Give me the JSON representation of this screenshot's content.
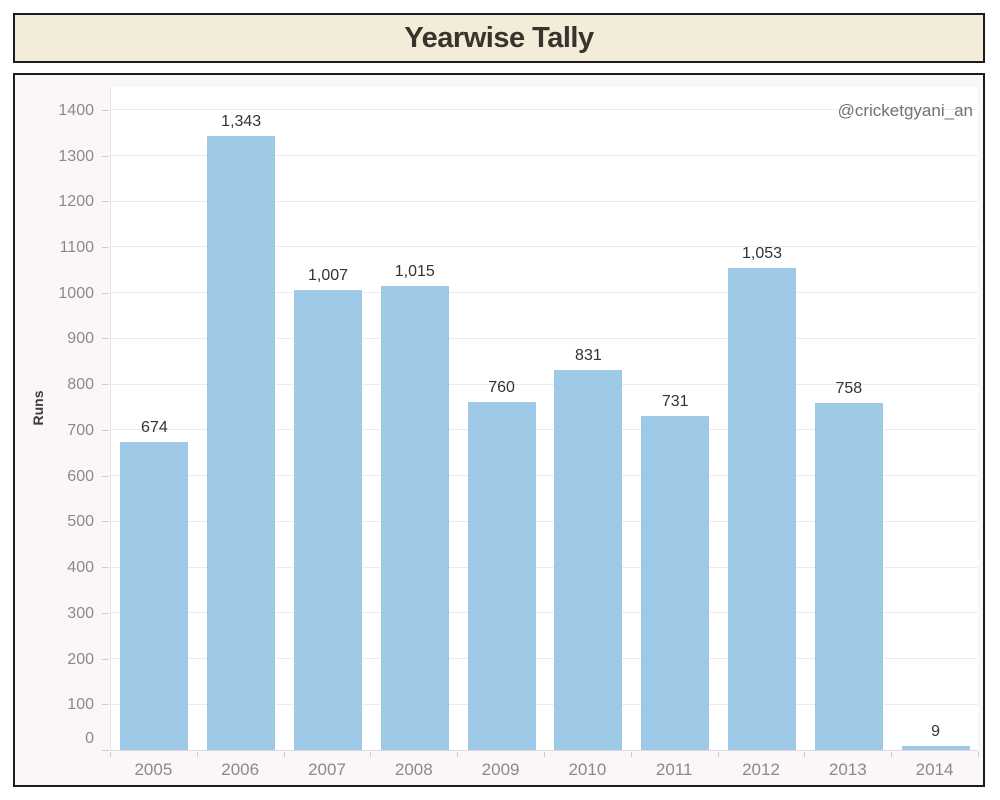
{
  "header": {
    "title": "Yearwise Tally"
  },
  "chart": {
    "watermark": "@cricketgyani_an",
    "ylabel": "Runs"
  },
  "chart_data": {
    "type": "bar",
    "title": "Yearwise Tally",
    "categories": [
      "2005",
      "2006",
      "2007",
      "2008",
      "2009",
      "2010",
      "2011",
      "2012",
      "2013",
      "2014"
    ],
    "values": [
      674,
      1343,
      1007,
      1015,
      760,
      831,
      731,
      1053,
      758,
      9
    ],
    "value_labels": [
      "674",
      "1,343",
      "1,007",
      "1,015",
      "760",
      "831",
      "731",
      "1,053",
      "758",
      "9"
    ],
    "xlabel": "",
    "ylabel": "Runs",
    "ylim": [
      0,
      1452
    ],
    "yticks": [
      0,
      100,
      200,
      300,
      400,
      500,
      600,
      700,
      800,
      900,
      1000,
      1100,
      1200,
      1300,
      1400
    ],
    "grid": "horizontal-only",
    "legend": "none",
    "annotations": [
      "@cricketgyani_an"
    ]
  },
  "colors": {
    "bar": "#9dc8e6",
    "title_bg": "#f2ecd8",
    "panel_bg": "#fbf7f9",
    "border": "#1c1c1c",
    "grid": "#eeeaed",
    "axis_text": "#8a8a8a",
    "label_text": "#333333",
    "watermark_text": "#737373"
  }
}
